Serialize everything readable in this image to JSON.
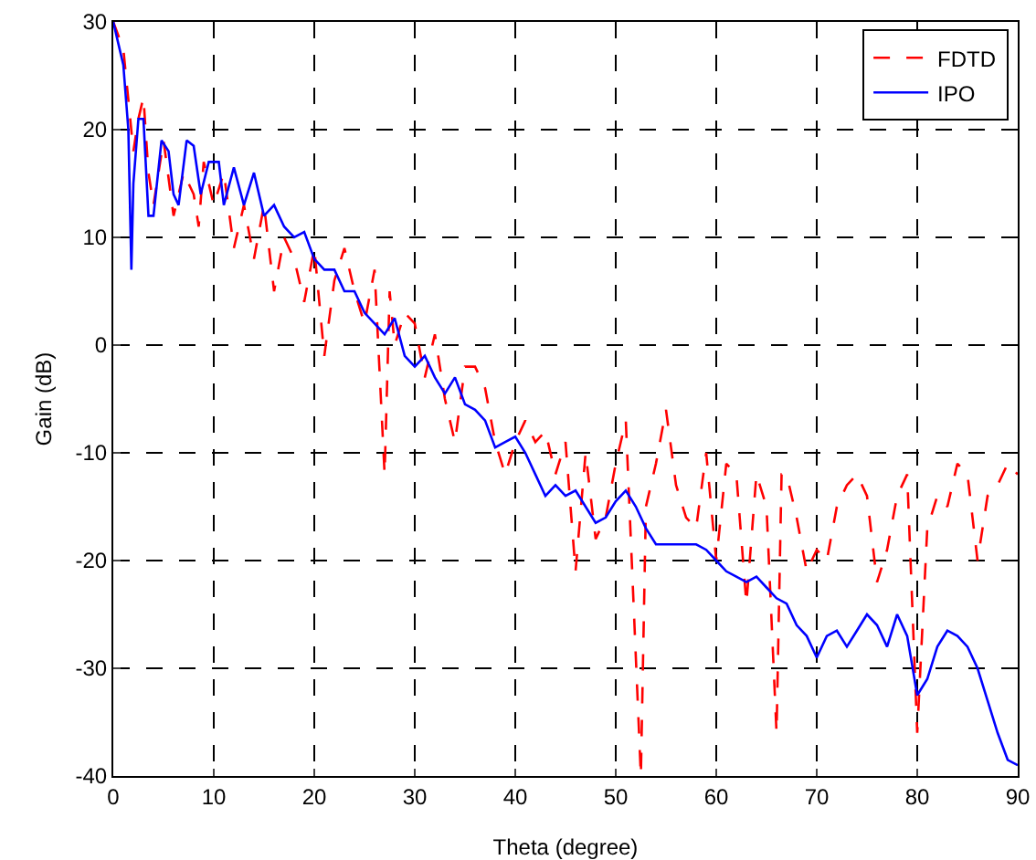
{
  "chart_data": {
    "type": "line",
    "xlabel": "Theta (degree)",
    "ylabel": "Gain (dB)",
    "xlim": [
      0,
      90
    ],
    "xticks": [
      0,
      10,
      20,
      30,
      40,
      50,
      60,
      70,
      80,
      90
    ],
    "ylim": [
      -40,
      30
    ],
    "yticks": [
      -40,
      -30,
      -20,
      -10,
      0,
      10,
      20,
      30
    ],
    "grid": true,
    "legend": "top right",
    "series": [
      {
        "name": "FDTD",
        "color": "#ff0000",
        "line_style": "dashed",
        "x": [
          0,
          1,
          2,
          2.5,
          3,
          3.5,
          4,
          5,
          6,
          7,
          8,
          8.5,
          9,
          10,
          11,
          12,
          13,
          14,
          15,
          16,
          17,
          18,
          19,
          20,
          21,
          22,
          23,
          24,
          25,
          26,
          27,
          27.5,
          28,
          29,
          30,
          31,
          32,
          33,
          34,
          35,
          36,
          37,
          38,
          39,
          40,
          41,
          42,
          43,
          44,
          45,
          46,
          47,
          48,
          49,
          50,
          51,
          52,
          52.5,
          53,
          54,
          55,
          56,
          57,
          58,
          59,
          60,
          61,
          62,
          63,
          64,
          65,
          66,
          66.5,
          67,
          68,
          69,
          70,
          71,
          72,
          73,
          74,
          75,
          76,
          77,
          78,
          79,
          80,
          81,
          82,
          83,
          84,
          85,
          86,
          87,
          88,
          89,
          90
        ],
        "values": [
          30,
          27.5,
          18,
          21,
          23,
          16,
          13,
          19,
          12,
          16,
          14,
          11,
          17,
          13,
          16,
          9,
          13,
          8,
          13,
          5,
          10,
          8,
          4,
          9,
          -1,
          6,
          9,
          5,
          2,
          7,
          -12,
          5,
          0,
          3,
          2,
          -3,
          1,
          -5,
          -9,
          -2,
          -2,
          -4,
          -9,
          -12,
          -9,
          -7,
          -9,
          -8,
          -12,
          -9,
          -21,
          -10,
          -18,
          -16,
          -11,
          -7,
          -29,
          -40,
          -15,
          -11,
          -6,
          -13,
          -16,
          -17,
          -10,
          -20,
          -11,
          -12,
          -24,
          -12,
          -15,
          -36,
          -12,
          -12,
          -16,
          -21,
          -19,
          -20,
          -15,
          -13,
          -12,
          -14,
          -22,
          -19,
          -14,
          -12,
          -36,
          -17,
          -14,
          -15,
          -11,
          -12,
          -20,
          -14,
          -13,
          -11,
          -12
        ]
      },
      {
        "name": "IPO",
        "color": "#0000ff",
        "line_style": "solid",
        "x": [
          0,
          0.5,
          1,
          1.5,
          1.8,
          2,
          2.5,
          3,
          3.5,
          4,
          4.8,
          5.5,
          6,
          6.5,
          7.3,
          8,
          8.7,
          9.5,
          10.5,
          11,
          12,
          13,
          14,
          15,
          16,
          17,
          18,
          19,
          20,
          21,
          22,
          23,
          24,
          25,
          26,
          27,
          28,
          29,
          30,
          31,
          32,
          33,
          34,
          35,
          36,
          37,
          38,
          39,
          40,
          41,
          42,
          43,
          44,
          45,
          46,
          47,
          48,
          49,
          50,
          51,
          52,
          53,
          54,
          55,
          57,
          58,
          59,
          60,
          61,
          62,
          63,
          64,
          65,
          66,
          67,
          68,
          69,
          70,
          71,
          72,
          73,
          74,
          75,
          76,
          77,
          78,
          79,
          80,
          81,
          82,
          83,
          84,
          85,
          86,
          87,
          88,
          89,
          90
        ],
        "values": [
          30,
          28,
          26,
          20,
          7,
          15,
          21,
          21,
          12,
          12,
          19,
          18,
          14,
          13,
          19,
          18.5,
          14,
          17,
          17,
          13,
          16.5,
          13,
          16,
          12,
          13,
          11,
          10,
          10.5,
          8,
          7,
          7,
          5,
          5,
          3,
          2,
          1,
          2.5,
          -1,
          -2,
          -1,
          -3,
          -4.5,
          -3,
          -5.5,
          -6,
          -7,
          -9.5,
          -9,
          -8.5,
          -10,
          -12,
          -14,
          -13,
          -14,
          -13.5,
          -15,
          -16.5,
          -16,
          -14.5,
          -13.5,
          -15,
          -17,
          -18.5,
          -18.5,
          -18.5,
          -18.5,
          -19,
          -20,
          -21,
          -21.5,
          -22,
          -21.5,
          -22.5,
          -23.5,
          -24,
          -26,
          -27,
          -29,
          -27,
          -26.5,
          -28,
          -26.5,
          -25,
          -26,
          -28,
          -25,
          -27,
          -32.5,
          -31,
          -28,
          -26.5,
          -27,
          -28,
          -30,
          -33,
          -36,
          -38.5,
          -39
        ]
      }
    ]
  }
}
